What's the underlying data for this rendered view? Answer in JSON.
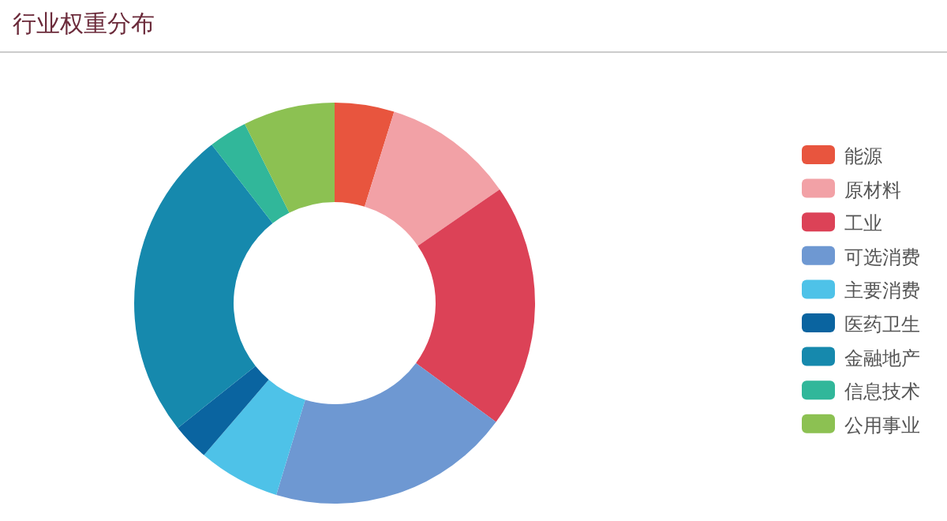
{
  "chart_data": {
    "type": "donut",
    "title": "行业权重分布",
    "categories": [
      "能源",
      "原材料",
      "工业",
      "可选消费",
      "主要消费",
      "医药卫生",
      "金融地产",
      "信息技术",
      "公用事业"
    ],
    "values": [
      4.8,
      10.6,
      19.7,
      19.6,
      6.6,
      3.0,
      25.2,
      3.1,
      7.4
    ],
    "colors": [
      "#e8553e",
      "#f2a1a6",
      "#dc4257",
      "#6e98d2",
      "#4ec2e8",
      "#0a64a0",
      "#1689ad",
      "#31b79a",
      "#8cc152"
    ],
    "legend": "right"
  }
}
